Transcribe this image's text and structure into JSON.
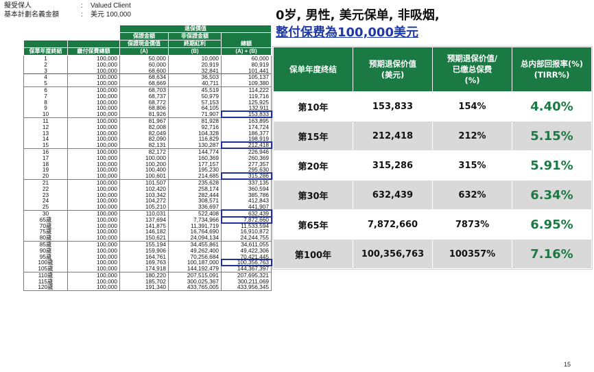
{
  "info": {
    "insured_label": "擬受保人",
    "insured_value": "Valued Client",
    "sum_label": "基本計劃名義金額",
    "sum_value": "美元 100,000",
    "colon": ":"
  },
  "detail": {
    "h_year": "保單年度終結",
    "h_paid": "繳付保費總額",
    "h_surrender": "退保價值",
    "h_guaranteed": "保證金額",
    "h_nonguaranteed": "非保證金額",
    "h_cash": "保證現金價值",
    "h_cash_sub": "(A)",
    "h_bonus": "終期紅利",
    "h_bonus_sub": "(B)",
    "h_total": "總額",
    "h_total_sub": "(A) + (B)",
    "rows": [
      [
        "1",
        "100,000",
        "50,000",
        "10,000",
        "60,000"
      ],
      [
        "2",
        "100,000",
        "60,000",
        "20,919",
        "80,919"
      ],
      [
        "3",
        "100,000",
        "68,600",
        "32,841",
        "101,441"
      ],
      [
        "4",
        "100,000",
        "68,634",
        "36,503",
        "105,137"
      ],
      [
        "5",
        "100,000",
        "68,669",
        "40,711",
        "109,380"
      ],
      [
        "6",
        "100,000",
        "68,703",
        "45,519",
        "114,222"
      ],
      [
        "7",
        "100,000",
        "68,737",
        "50,979",
        "119,716"
      ],
      [
        "8",
        "100,000",
        "68,772",
        "57,153",
        "125,925"
      ],
      [
        "9",
        "100,000",
        "68,806",
        "64,105",
        "132,911"
      ],
      [
        "10",
        "100,000",
        "81,926",
        "71,907",
        "153,833"
      ],
      [
        "11",
        "100,000",
        "81,967",
        "81,928",
        "163,895"
      ],
      [
        "12",
        "100,000",
        "82,008",
        "92,716",
        "174,724"
      ],
      [
        "13",
        "100,000",
        "82,049",
        "104,328",
        "186,377"
      ],
      [
        "14",
        "100,000",
        "82,090",
        "116,829",
        "198,919"
      ],
      [
        "15",
        "100,000",
        "82,131",
        "130,287",
        "212,418"
      ],
      [
        "16",
        "100,000",
        "82,172",
        "144,774",
        "226,946"
      ],
      [
        "17",
        "100,000",
        "100,000",
        "160,369",
        "260,369"
      ],
      [
        "18",
        "100,000",
        "100,200",
        "177,157",
        "277,357"
      ],
      [
        "19",
        "100,000",
        "100,400",
        "195,230",
        "295,630"
      ],
      [
        "20",
        "100,000",
        "100,601",
        "214,685",
        "315,286"
      ],
      [
        "21",
        "100,000",
        "101,507",
        "235,628",
        "337,135"
      ],
      [
        "22",
        "100,000",
        "102,420",
        "258,174",
        "360,594"
      ],
      [
        "23",
        "100,000",
        "103,342",
        "282,444",
        "385,786"
      ],
      [
        "24",
        "100,000",
        "104,272",
        "308,571",
        "412,843"
      ],
      [
        "25",
        "100,000",
        "105,210",
        "336,697",
        "441,907"
      ],
      [
        "30",
        "100,000",
        "110,031",
        "522,408",
        "632,439"
      ],
      [
        "65歲",
        "100,000",
        "137,694",
        "7,734,966",
        "7,872,660"
      ],
      [
        "70歲",
        "100,000",
        "141,875",
        "11,391,719",
        "11,533,594"
      ],
      [
        "75歲",
        "100,000",
        "146,182",
        "16,764,690",
        "16,910,872"
      ],
      [
        "80歲",
        "100,000",
        "150,621",
        "24,094,134",
        "24,244,755"
      ],
      [
        "85歲",
        "100,000",
        "155,194",
        "34,455,861",
        "34,611,055"
      ],
      [
        "90歲",
        "100,000",
        "159,906",
        "49,262,400",
        "49,422,306"
      ],
      [
        "95歲",
        "100,000",
        "164,761",
        "70,256,684",
        "70,421,445"
      ],
      [
        "100歲",
        "100,000",
        "169,763",
        "100,187,000",
        "100,356,763"
      ],
      [
        "105歲",
        "100,000",
        "174,918",
        "144,192,479",
        "144,367,397"
      ],
      [
        "110歲",
        "100,000",
        "180,220",
        "207,515,091",
        "207,695,321"
      ],
      [
        "115歲",
        "100,000",
        "185,702",
        "300,025,367",
        "300,211,069"
      ],
      [
        "120歲",
        "100,000",
        "191,340",
        "433,765,005",
        "433,956,345"
      ]
    ]
  },
  "headline": {
    "line1": "0岁, 男性, 美元保单, 非吸烟,",
    "line2": "整付保费為100,000美元"
  },
  "summary": {
    "headers": [
      "保单年度终结",
      "预期退保价值\n(美元)",
      "预期退保价值/\n已缴总保费\n(%)",
      "总内部回报率(%)\n(TIRR%)"
    ],
    "rows": [
      [
        "第10年",
        "153,833",
        "154%",
        "4.40%"
      ],
      [
        "第15年",
        "212,418",
        "212%",
        "5.15%"
      ],
      [
        "第20年",
        "315,286",
        "315%",
        "5.91%"
      ],
      [
        "第30年",
        "632,439",
        "632%",
        "6.34%"
      ],
      [
        "第65年",
        "7,872,660",
        "7873%",
        "6.95%"
      ],
      [
        "第100年",
        "100,356,763",
        "100357%",
        "7.16%"
      ]
    ]
  },
  "page_number": "15",
  "colors": {
    "green": "#1b7a43",
    "blue": "#1f3aa8",
    "highlight": "#1f2f9c"
  }
}
